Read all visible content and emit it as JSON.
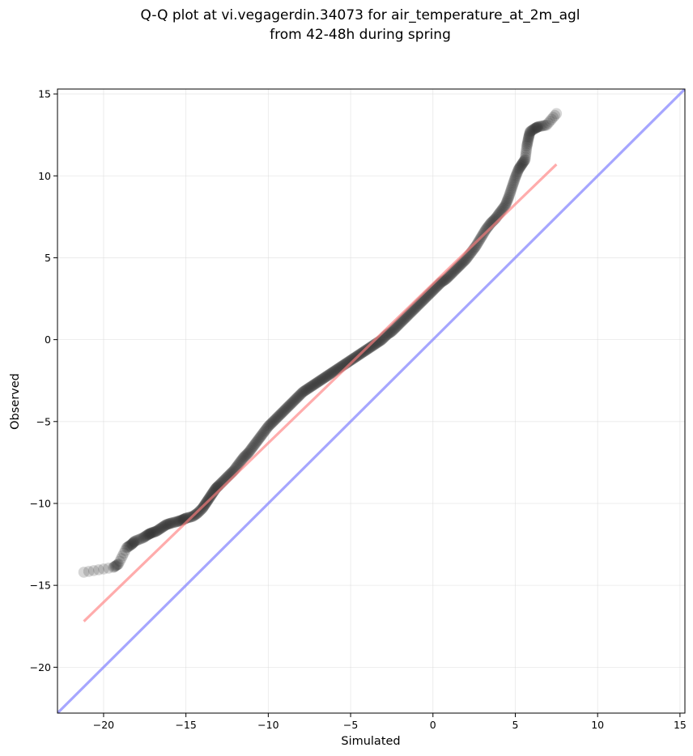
{
  "chart_data": {
    "type": "scatter",
    "title": "Q-Q plot at vi.vegagerdin.34073 for air_temperature_at_2m_agl",
    "subtitle": "from 42-48h during spring",
    "xlabel": "Simulated",
    "ylabel": "Observed",
    "xlim": [
      -22.8,
      15.3
    ],
    "ylim": [
      -22.8,
      15.3
    ],
    "xticks": [
      -20,
      -15,
      -10,
      -5,
      0,
      5,
      10,
      15
    ],
    "yticks": [
      -20,
      -15,
      -10,
      -5,
      0,
      5,
      10,
      15
    ],
    "xtick_labels": [
      "−20",
      "−15",
      "−10",
      "−5",
      "0",
      "5",
      "10",
      "15"
    ],
    "ytick_labels": [
      "−20",
      "−15",
      "−10",
      "−5",
      "0",
      "5",
      "10",
      "15"
    ],
    "grid": true,
    "point_color": "#333333",
    "fit_line_color": "#ff8080",
    "identity_line_color": "#8888ff",
    "fit_line": {
      "x": [
        -21.2,
        7.5
      ],
      "y": [
        -17.2,
        10.7
      ]
    },
    "identity_line": {
      "x": [
        -22.8,
        15.3
      ],
      "y": [
        -22.8,
        15.3
      ]
    },
    "points": {
      "x": [
        -21.2,
        -19.4,
        -19.1,
        -18.6,
        -18.3,
        -18.1,
        -17.6,
        -17.3,
        -17.1,
        -16.8,
        -16.5,
        -16.2,
        -15.9,
        -15.5,
        -15.2,
        -15.0,
        -14.6,
        -14.3,
        -14.0,
        -13.8,
        -13.6,
        -13.4,
        -13.2,
        -13.0,
        -12.7,
        -12.4,
        -12.1,
        -11.8,
        -11.5,
        -11.2,
        -10.9,
        -10.6,
        -10.3,
        -10.0,
        -9.7,
        -9.4,
        -9.1,
        -8.8,
        -8.5,
        -8.2,
        -7.9,
        -7.6,
        -7.3,
        -7.0,
        -6.7,
        -6.4,
        -6.1,
        -5.8,
        -5.5,
        -5.2,
        -4.9,
        -4.6,
        -4.3,
        -4.0,
        -3.7,
        -3.4,
        -3.1,
        -2.8,
        -2.5,
        -2.2,
        -1.9,
        -1.6,
        -1.3,
        -1.0,
        -0.7,
        -0.4,
        -0.1,
        0.2,
        0.5,
        0.8,
        1.1,
        1.4,
        1.7,
        2.0,
        2.3,
        2.6,
        2.9,
        3.2,
        3.5,
        3.8,
        4.1,
        4.4,
        4.6,
        4.8,
        5.0,
        5.2,
        5.4,
        5.6,
        5.7,
        5.8,
        5.9,
        6.2,
        6.4,
        6.9,
        7.5
      ],
      "y": [
        -14.2,
        -13.9,
        -13.7,
        -12.7,
        -12.5,
        -12.3,
        -12.1,
        -11.9,
        -11.8,
        -11.7,
        -11.5,
        -11.3,
        -11.2,
        -11.1,
        -11.0,
        -10.9,
        -10.8,
        -10.6,
        -10.3,
        -10.0,
        -9.7,
        -9.4,
        -9.1,
        -8.9,
        -8.6,
        -8.3,
        -8.0,
        -7.6,
        -7.2,
        -6.9,
        -6.5,
        -6.1,
        -5.7,
        -5.3,
        -5.0,
        -4.7,
        -4.4,
        -4.1,
        -3.8,
        -3.5,
        -3.2,
        -3.0,
        -2.8,
        -2.6,
        -2.4,
        -2.2,
        -2.0,
        -1.8,
        -1.6,
        -1.4,
        -1.2,
        -1.0,
        -0.8,
        -0.6,
        -0.4,
        -0.2,
        0.0,
        0.3,
        0.5,
        0.8,
        1.1,
        1.4,
        1.7,
        2.0,
        2.3,
        2.6,
        2.9,
        3.2,
        3.5,
        3.7,
        4.0,
        4.3,
        4.6,
        4.9,
        5.3,
        5.7,
        6.2,
        6.7,
        7.1,
        7.4,
        7.8,
        8.2,
        8.7,
        9.3,
        9.9,
        10.4,
        10.7,
        11.0,
        11.8,
        12.3,
        12.7,
        12.9,
        13.0,
        13.1,
        13.8
      ]
    }
  }
}
